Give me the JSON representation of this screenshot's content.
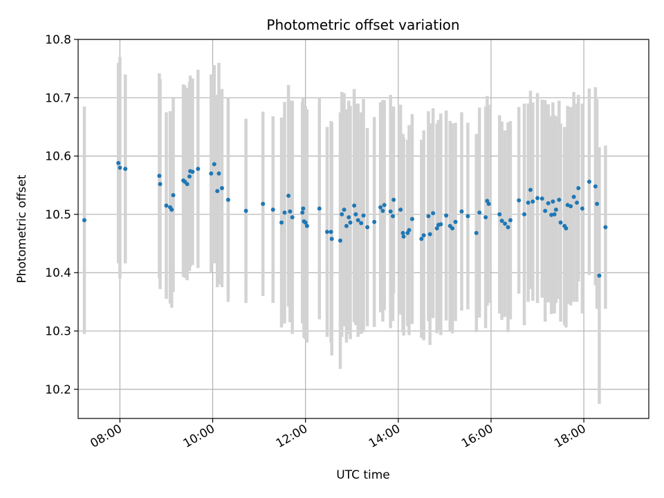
{
  "chart_data": {
    "type": "scatter",
    "title": "Photometric offset variation",
    "xlabel": "UTC time",
    "ylabel": "Photometric offset",
    "x_unit": "UTC hh:mm",
    "xlim": [
      "07:06",
      "19:24"
    ],
    "ylim": [
      10.15,
      10.8
    ],
    "xticks": [
      "08:00",
      "10:00",
      "12:00",
      "14:00",
      "16:00",
      "18:00"
    ],
    "yticks": [
      "10.2",
      "10.3",
      "10.4",
      "10.5",
      "10.6",
      "10.7",
      "10.8"
    ],
    "grid": true,
    "colors": {
      "point": "#1f77b4",
      "errorbar": "#d3d3d3",
      "grid": "#b0b0b0"
    },
    "series": [
      {
        "x": [
          "07:14",
          "07:58",
          "08:00",
          "08:07",
          "08:51",
          "08:52",
          "09:00",
          "09:05",
          "09:07",
          "09:09",
          "09:22",
          "09:24",
          "09:27",
          "09:30",
          "09:31",
          "09:34",
          "09:41",
          "09:58",
          "10:02",
          "10:06",
          "10:08",
          "10:12",
          "10:20",
          "10:43",
          "11:05",
          "11:18",
          "11:29",
          "11:33",
          "11:38",
          "11:40",
          "11:43",
          "11:56",
          "11:57",
          "11:58",
          "12:00",
          "12:02",
          "12:18",
          "12:28",
          "12:33",
          "12:34",
          "12:45",
          "12:47",
          "12:50",
          "12:53",
          "12:56",
          "12:58",
          "13:03",
          "13:05",
          "13:08",
          "13:12",
          "13:15",
          "13:20",
          "13:29",
          "13:37",
          "13:40",
          "13:42",
          "13:50",
          "13:53",
          "13:54",
          "14:03",
          "14:06",
          "14:07",
          "14:12",
          "14:14",
          "14:18",
          "14:30",
          "14:33",
          "14:39",
          "14:41",
          "14:45",
          "14:50",
          "14:52",
          "14:55",
          "15:02",
          "15:07",
          "15:10",
          "15:14",
          "15:22",
          "15:30",
          "15:41",
          "15:45",
          "15:53",
          "15:55",
          "15:57",
          "16:11",
          "16:14",
          "16:18",
          "16:22",
          "16:25",
          "16:36",
          "16:43",
          "16:48",
          "16:51",
          "16:54",
          "17:00",
          "17:06",
          "17:10",
          "17:14",
          "17:18",
          "17:20",
          "17:22",
          "17:24",
          "17:28",
          "17:30",
          "17:35",
          "17:37",
          "17:39",
          "17:43",
          "17:47",
          "17:51",
          "17:53",
          "17:58",
          "18:07",
          "18:15",
          "18:17",
          "18:20",
          "18:28"
        ],
        "y": [
          10.49,
          10.588,
          10.58,
          10.578,
          10.566,
          10.552,
          10.515,
          10.512,
          10.508,
          10.533,
          10.558,
          10.556,
          10.552,
          10.565,
          10.574,
          10.573,
          10.578,
          10.57,
          10.586,
          10.54,
          10.57,
          10.545,
          10.525,
          10.506,
          10.518,
          10.508,
          10.486,
          10.503,
          10.532,
          10.505,
          10.495,
          10.503,
          10.51,
          10.488,
          10.486,
          10.48,
          10.51,
          10.47,
          10.47,
          10.458,
          10.455,
          10.5,
          10.508,
          10.48,
          10.495,
          10.486,
          10.515,
          10.5,
          10.49,
          10.485,
          10.498,
          10.478,
          10.487,
          10.512,
          10.506,
          10.516,
          10.505,
          10.497,
          10.525,
          10.508,
          10.468,
          10.462,
          10.468,
          10.473,
          10.492,
          10.458,
          10.464,
          10.497,
          10.466,
          10.502,
          10.476,
          10.482,
          10.483,
          10.498,
          10.48,
          10.476,
          10.487,
          10.505,
          10.497,
          10.468,
          10.503,
          10.495,
          10.523,
          10.518,
          10.5,
          10.489,
          10.484,
          10.478,
          10.49,
          10.524,
          10.5,
          10.52,
          10.542,
          10.522,
          10.528,
          10.527,
          10.506,
          10.519,
          10.499,
          10.522,
          10.5,
          10.508,
          10.525,
          10.486,
          10.48,
          10.476,
          10.516,
          10.514,
          10.53,
          10.52,
          10.545,
          10.51,
          10.556,
          10.548,
          10.518,
          10.395,
          10.478
        ],
        "yerr": [
          0.195,
          0.172,
          0.19,
          0.162,
          0.176,
          0.18,
          0.16,
          0.165,
          0.168,
          0.166,
          0.165,
          0.165,
          0.165,
          0.162,
          0.164,
          0.16,
          0.17,
          0.17,
          0.17,
          0.165,
          0.19,
          0.17,
          0.175,
          0.158,
          0.158,
          0.16,
          0.18,
          0.19,
          0.19,
          0.19,
          0.2,
          0.19,
          0.19,
          0.2,
          0.2,
          0.2,
          0.19,
          0.18,
          0.19,
          0.2,
          0.22,
          0.21,
          0.2,
          0.2,
          0.2,
          0.2,
          0.2,
          0.19,
          0.2,
          0.19,
          0.2,
          0.17,
          0.18,
          0.18,
          0.19,
          0.18,
          0.2,
          0.18,
          0.16,
          0.18,
          0.17,
          0.17,
          0.16,
          0.18,
          0.18,
          0.17,
          0.18,
          0.18,
          0.19,
          0.18,
          0.18,
          0.18,
          0.19,
          0.18,
          0.18,
          0.18,
          0.17,
          0.17,
          0.16,
          0.17,
          0.18,
          0.19,
          0.18,
          0.17,
          0.17,
          0.17,
          0.16,
          0.18,
          0.17,
          0.16,
          0.19,
          0.17,
          0.17,
          0.17,
          0.18,
          0.17,
          0.19,
          0.17,
          0.17,
          0.17,
          0.17,
          0.16,
          0.17,
          0.17,
          0.17,
          0.17,
          0.17,
          0.17,
          0.18,
          0.17,
          0.16,
          0.18,
          0.16,
          0.17,
          0.18,
          0.22,
          0.14
        ]
      }
    ]
  }
}
